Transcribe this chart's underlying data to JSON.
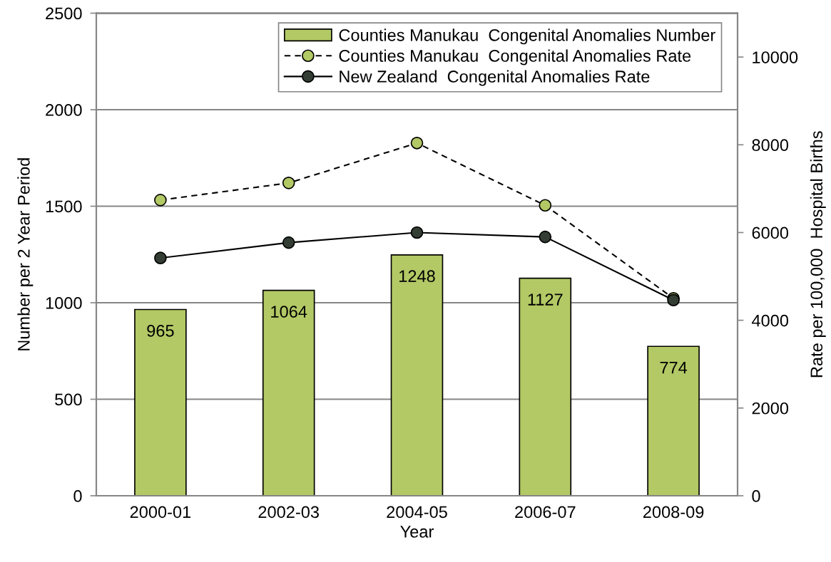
{
  "chart_data": {
    "type": "bar",
    "xlabel": "Year",
    "ylabel": "Number per 2 Year Period",
    "y2label": "Rate per 100,000  Hospital Births",
    "categories": [
      "2000-01",
      "2002-03",
      "2004-05",
      "2006-07",
      "2008-09"
    ],
    "series": [
      {
        "name": "Counties Manukau  Congenital Anomalies Number",
        "color": "#b3c965",
        "values": [
          965,
          1064,
          1248,
          1127,
          774
        ],
        "value_labels": [
          "965",
          "1064",
          "1248",
          "1127",
          "774"
        ]
      },
      {
        "name": "Counties Manukau  Congenital Anomalies Rate",
        "type": "line",
        "axis": "y2",
        "color": "#b3c965",
        "line_style": "dashed",
        "marker": "circle",
        "values": [
          6740,
          7130,
          8040,
          6620,
          4500
        ]
      },
      {
        "name": "New Zealand  Congenital Anomalies Rate",
        "type": "line",
        "axis": "y2",
        "color": "#333d33",
        "line_style": "solid",
        "marker": "circle",
        "values": [
          5420,
          5770,
          6000,
          5900,
          4460
        ]
      }
    ],
    "ylim": [
      0,
      2500
    ],
    "yticks": [
      0,
      500,
      1000,
      1500,
      2000,
      2500
    ],
    "y2lim": [
      0,
      11000
    ],
    "y2ticks": [
      0,
      2000,
      4000,
      6000,
      8000,
      10000
    ],
    "grid": "y",
    "legend": "top right"
  }
}
